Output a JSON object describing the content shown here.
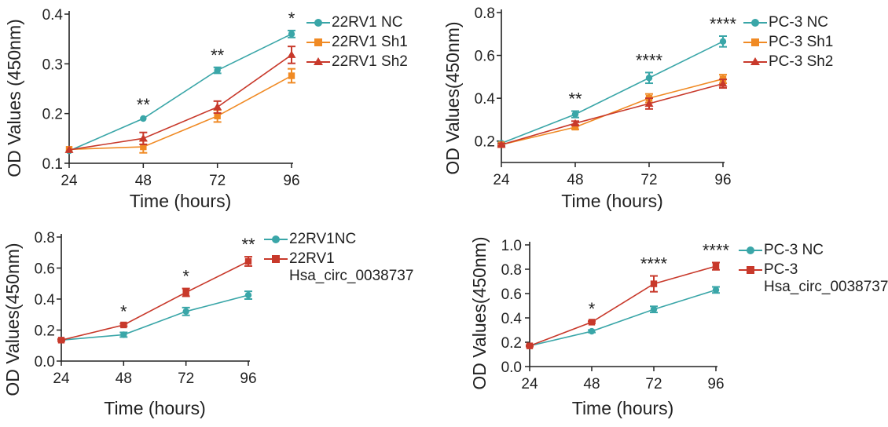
{
  "chart_data": [
    {
      "type": "line",
      "id": "tl",
      "xlabel": "Time (hours)",
      "ylabel": "OD Values (450nm)",
      "categories": [
        "24",
        "48",
        "72",
        "96"
      ],
      "x": [
        24,
        48,
        72,
        96
      ],
      "xlim": [
        24,
        96
      ],
      "ylim": [
        0.1,
        0.4
      ],
      "yticks": [
        0.1,
        0.2,
        0.3,
        0.4
      ],
      "ytick_labels": [
        "0.1",
        "0.2",
        "0.3",
        "0.4"
      ],
      "significance": [
        "",
        "**",
        "**",
        "*"
      ],
      "legend_position": "right",
      "series": [
        {
          "name": "22RV1 NC",
          "color": "#3aa6a8",
          "marker": "circle",
          "values": [
            0.125,
            0.19,
            0.287,
            0.36
          ],
          "errors": [
            0.004,
            0.003,
            0.006,
            0.007
          ]
        },
        {
          "name": "22RV1 Sh1",
          "color": "#f08a24",
          "marker": "square",
          "values": [
            0.128,
            0.133,
            0.195,
            0.276
          ],
          "errors": [
            0.004,
            0.012,
            0.012,
            0.014
          ]
        },
        {
          "name": "22RV1 Sh2",
          "color": "#c8392b",
          "marker": "triangle",
          "values": [
            0.127,
            0.15,
            0.213,
            0.318
          ],
          "errors": [
            0.004,
            0.012,
            0.012,
            0.017
          ]
        }
      ]
    },
    {
      "type": "line",
      "id": "tr",
      "xlabel": "Time (hours)",
      "ylabel": "OD Values(450nm)",
      "categories": [
        "24",
        "48",
        "72",
        "96"
      ],
      "x": [
        24,
        48,
        72,
        96
      ],
      "xlim": [
        24,
        96
      ],
      "ylim": [
        0.1,
        0.8
      ],
      "yticks": [
        0.2,
        0.4,
        0.6,
        0.8
      ],
      "ytick_labels": [
        "0.2",
        "0.4",
        "0.6",
        "0.8"
      ],
      "significance": [
        "",
        "**",
        "****",
        "****"
      ],
      "legend_position": "right",
      "series": [
        {
          "name": "PC-3 NC",
          "color": "#3aa6a8",
          "marker": "circle",
          "values": [
            0.19,
            0.325,
            0.495,
            0.665
          ],
          "errors": [
            0.006,
            0.015,
            0.025,
            0.025
          ]
        },
        {
          "name": "PC-3 Sh1",
          "color": "#f08a24",
          "marker": "square",
          "values": [
            0.183,
            0.265,
            0.4,
            0.49
          ],
          "errors": [
            0.006,
            0.01,
            0.02,
            0.02
          ]
        },
        {
          "name": "PC-3 Sh2",
          "color": "#c8392b",
          "marker": "triangle",
          "values": [
            0.183,
            0.283,
            0.375,
            0.468
          ],
          "errors": [
            0.006,
            0.01,
            0.025,
            0.02
          ]
        }
      ]
    },
    {
      "type": "line",
      "id": "bl",
      "xlabel": "Time (hours)",
      "ylabel": "OD Values(450nm)",
      "categories": [
        "24",
        "48",
        "72",
        "96"
      ],
      "x": [
        24,
        48,
        72,
        96
      ],
      "xlim": [
        24,
        96
      ],
      "ylim": [
        0.0,
        0.8
      ],
      "yticks": [
        0.0,
        0.2,
        0.4,
        0.6,
        0.8
      ],
      "ytick_labels": [
        "0.0",
        "0.2",
        "0.4",
        "0.6",
        "0.8"
      ],
      "significance": [
        "",
        "*",
        "*",
        "**"
      ],
      "legend_position": "right",
      "series": [
        {
          "name": "22RV1NC",
          "color": "#3aa6a8",
          "marker": "circle",
          "values": [
            0.135,
            0.17,
            0.32,
            0.425
          ],
          "errors": [
            0.006,
            0.015,
            0.025,
            0.025
          ]
        },
        {
          "name": "22RV1 Hsa_circ_0038737",
          "color": "#c8392b",
          "marker": "square",
          "values": [
            0.135,
            0.233,
            0.443,
            0.643
          ],
          "errors": [
            0.006,
            0.008,
            0.025,
            0.03
          ]
        }
      ]
    },
    {
      "type": "line",
      "id": "br",
      "xlabel": "Time (hours)",
      "ylabel": "OD Values(450nm)",
      "categories": [
        "24",
        "48",
        "72",
        "96"
      ],
      "x": [
        24,
        48,
        72,
        96
      ],
      "xlim": [
        24,
        96
      ],
      "ylim": [
        0.0,
        1.0
      ],
      "yticks": [
        0.0,
        0.2,
        0.4,
        0.6,
        0.8,
        1.0
      ],
      "ytick_labels": [
        "0.0",
        "0.2",
        "0.4",
        "0.6",
        "0.8",
        "1.0"
      ],
      "significance": [
        "",
        "*",
        "****",
        "****"
      ],
      "legend_position": "right",
      "series": [
        {
          "name": "PC-3 NC",
          "color": "#3aa6a8",
          "marker": "circle",
          "values": [
            0.17,
            0.29,
            0.47,
            0.63
          ],
          "errors": [
            0.006,
            0.01,
            0.025,
            0.025
          ]
        },
        {
          "name": "PC-3 Hsa_circ_0038737",
          "color": "#c8392b",
          "marker": "square",
          "values": [
            0.17,
            0.365,
            0.68,
            0.825
          ],
          "errors": [
            0.006,
            0.008,
            0.065,
            0.03
          ]
        }
      ]
    }
  ]
}
